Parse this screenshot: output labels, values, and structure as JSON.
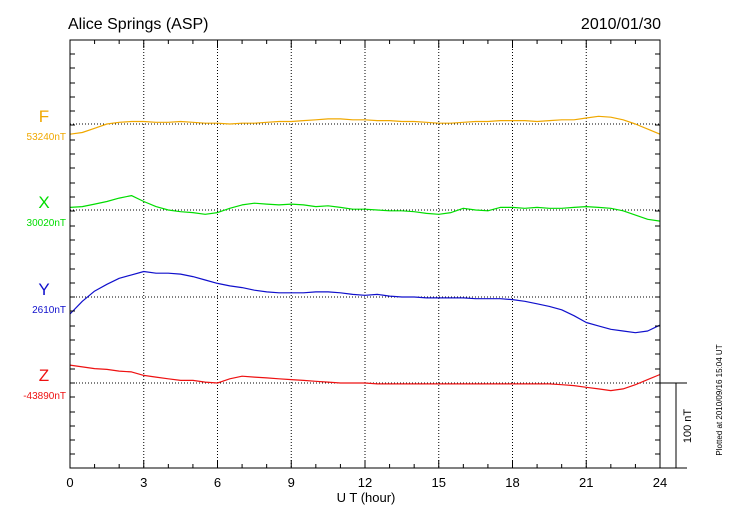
{
  "chart_data": {
    "type": "line",
    "title": "Alice Springs (ASP)",
    "date": "2010/01/30",
    "xlabel": "U T (hour)",
    "xlim": [
      0,
      24
    ],
    "xticks": [
      "0",
      "3",
      "6",
      "9",
      "12",
      "15",
      "18",
      "21",
      "24"
    ],
    "scale_bar_label": "100 nT",
    "plotted_note": "Plotted at 2010/09/16 15:04 UT",
    "grid": true,
    "series": [
      {
        "name": "F",
        "baseline_label": "53240nT",
        "color": "#f0a800",
        "x": [
          0,
          0.5,
          1,
          1.5,
          2,
          2.5,
          3,
          3.5,
          4,
          4.5,
          5,
          5.5,
          6,
          6.5,
          7,
          7.5,
          8,
          8.5,
          9,
          9.5,
          10,
          10.5,
          11,
          11.5,
          12,
          12.5,
          13,
          13.5,
          14,
          14.5,
          15,
          15.5,
          16,
          16.5,
          17,
          17.5,
          18,
          18.5,
          19,
          19.5,
          20,
          20.5,
          21,
          21.5,
          22,
          22.5,
          23,
          23.5,
          24
        ],
        "values": [
          -12,
          -10,
          -5,
          0,
          2,
          3,
          3,
          2,
          2,
          3,
          2,
          1,
          1,
          0,
          1,
          1,
          2,
          3,
          3,
          4,
          5,
          6,
          6,
          5,
          5,
          4,
          4,
          3,
          3,
          2,
          1,
          1,
          2,
          3,
          3,
          4,
          4,
          4,
          3,
          4,
          5,
          5,
          7,
          9,
          8,
          5,
          0,
          -6,
          -12
        ]
      },
      {
        "name": "X",
        "baseline_label": "30020nT",
        "color": "#00dd00",
        "x": [
          0,
          0.5,
          1,
          1.5,
          2,
          2.5,
          3,
          3.5,
          4,
          4.5,
          5,
          5.5,
          6,
          6.5,
          7,
          7.5,
          8,
          8.5,
          9,
          9.5,
          10,
          10.5,
          11,
          11.5,
          12,
          12.5,
          13,
          13.5,
          14,
          14.5,
          15,
          15.5,
          16,
          16.5,
          17,
          17.5,
          18,
          18.5,
          19,
          19.5,
          20,
          20.5,
          21,
          21.5,
          22,
          22.5,
          23,
          23.5,
          24
        ],
        "values": [
          3,
          4,
          7,
          10,
          14,
          17,
          10,
          4,
          0,
          -2,
          -3,
          -5,
          -3,
          2,
          6,
          8,
          7,
          6,
          7,
          6,
          4,
          5,
          3,
          1,
          1,
          0,
          -1,
          -1,
          -2,
          -4,
          -5,
          -3,
          2,
          0,
          -1,
          3,
          3,
          2,
          3,
          2,
          2,
          3,
          4,
          3,
          2,
          -1,
          -6,
          -11,
          -13
        ]
      },
      {
        "name": "Y",
        "baseline_label": "2610nT",
        "color": "#1010cc",
        "x": [
          0,
          0.5,
          1,
          1.5,
          2,
          2.5,
          3,
          3.5,
          4,
          4.5,
          5,
          5.5,
          6,
          6.5,
          7,
          7.5,
          8,
          8.5,
          9,
          9.5,
          10,
          10.5,
          11,
          11.5,
          12,
          12.5,
          13,
          13.5,
          14,
          14.5,
          15,
          15.5,
          16,
          16.5,
          17,
          17.5,
          18,
          18.5,
          19,
          19.5,
          20,
          20.5,
          21,
          21.5,
          22,
          22.5,
          23,
          23.5,
          24
        ],
        "values": [
          -20,
          -5,
          7,
          15,
          22,
          26,
          30,
          28,
          28,
          27,
          24,
          20,
          16,
          13,
          11,
          8,
          6,
          5,
          5,
          5,
          6,
          6,
          5,
          3,
          2,
          3,
          1,
          0,
          0,
          -1,
          -1,
          -1,
          -1,
          -2,
          -2,
          -2,
          -3,
          -5,
          -8,
          -11,
          -15,
          -22,
          -30,
          -34,
          -38,
          -40,
          -42,
          -40,
          -33
        ]
      },
      {
        "name": "Z",
        "baseline_label": "-43890nT",
        "color": "#ee1111",
        "x": [
          0,
          0.5,
          1,
          1.5,
          2,
          2.5,
          3,
          3.5,
          4,
          4.5,
          5,
          5.5,
          6,
          6.5,
          7,
          7.5,
          8,
          8.5,
          9,
          9.5,
          10,
          10.5,
          11,
          11.5,
          12,
          12.5,
          13,
          13.5,
          14,
          14.5,
          15,
          15.5,
          16,
          16.5,
          17,
          17.5,
          18,
          18.5,
          19,
          19.5,
          20,
          20.5,
          21,
          21.5,
          22,
          22.5,
          23,
          23.5,
          24
        ],
        "values": [
          21,
          19,
          17,
          16,
          14,
          13,
          9,
          7,
          5,
          3,
          3,
          1,
          0,
          5,
          8,
          7,
          6,
          5,
          4,
          3,
          2,
          1,
          0,
          0,
          0,
          -1,
          -1,
          -1,
          -1,
          -1,
          -1,
          -1,
          -1,
          -1,
          -1,
          -1,
          -1,
          -1,
          -1,
          -1,
          -2,
          -3,
          -5,
          -7,
          -9,
          -7,
          -2,
          4,
          10
        ]
      }
    ]
  }
}
